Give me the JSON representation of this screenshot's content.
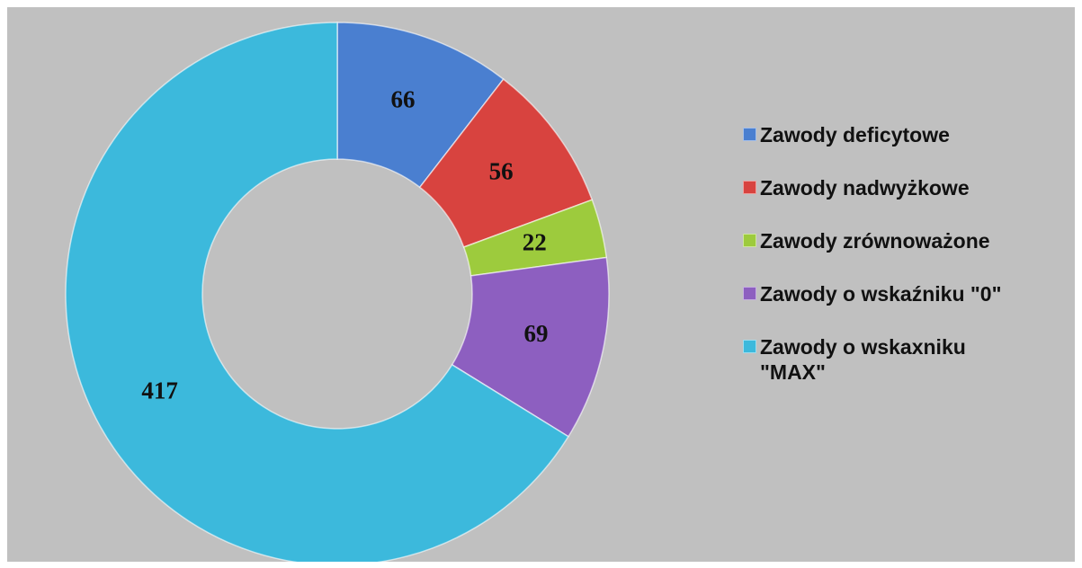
{
  "chart_data": {
    "type": "donut",
    "categories": [
      "Zawody deficytowe",
      "Zawody nadwyżkowe",
      "Zawody zrównoważone",
      "Zawody o wskaźniku \"0\"",
      "Zawody o wskaxniku \"MAX\""
    ],
    "values": [
      66,
      56,
      22,
      69,
      417
    ],
    "colors": [
      "#4a7fd0",
      "#d8433f",
      "#9dcb3d",
      "#8d5fc0",
      "#3cb9dc"
    ],
    "legend": "right"
  }
}
